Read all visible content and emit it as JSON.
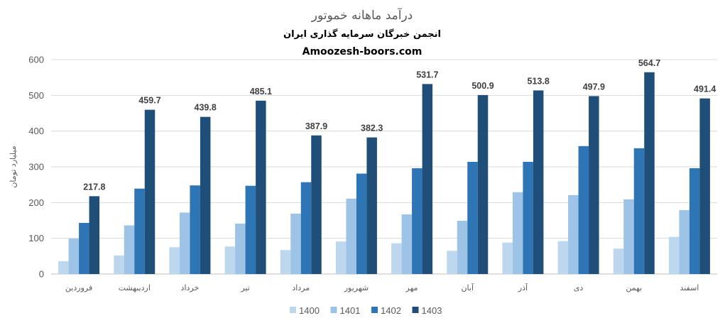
{
  "chart_data": {
    "type": "bar",
    "title": "درآمد ماهانه خموتور",
    "subtitle": "انجمن خبرگان سرمایه گذاری ایران",
    "source": "Amoozesh-boors.com",
    "ylabel": "میلیارد تومان",
    "xlabel": "",
    "ylim": [
      0,
      600
    ],
    "yticks": [
      0,
      100,
      200,
      300,
      400,
      500,
      600
    ],
    "grid": true,
    "legend_position": "bottom",
    "categories": [
      "فروردین",
      "اردیبهشت",
      "خرداد",
      "تیر",
      "مرداد",
      "شهریور",
      "مهر",
      "آبان",
      "آذر",
      "دی",
      "بهمن",
      "اسفند"
    ],
    "series": [
      {
        "name": "1400",
        "color": "#bdd7ee",
        "values": [
          36,
          52,
          75,
          77,
          67,
          91,
          86,
          65,
          88,
          92,
          71,
          104
        ]
      },
      {
        "name": "1401",
        "color": "#9dc3e6",
        "values": [
          99,
          136,
          172,
          141,
          169,
          211,
          167,
          149,
          229,
          221,
          209,
          179
        ]
      },
      {
        "name": "1402",
        "color": "#2e75b6",
        "values": [
          143,
          239,
          248,
          247,
          257,
          281,
          296,
          314,
          314,
          358,
          352,
          296
        ]
      },
      {
        "name": "1403",
        "color": "#1f4e79",
        "values": [
          217.8,
          459.7,
          439.8,
          485.1,
          387.9,
          382.3,
          531.7,
          500.9,
          513.8,
          497.9,
          564.7,
          491.4
        ],
        "data_labels": [
          "217.8",
          "459.7",
          "439.8",
          "485.1",
          "387.9",
          "382.3",
          "531.7",
          "500.9",
          "513.8",
          "497.9",
          "564.7",
          "491.4"
        ]
      }
    ]
  }
}
